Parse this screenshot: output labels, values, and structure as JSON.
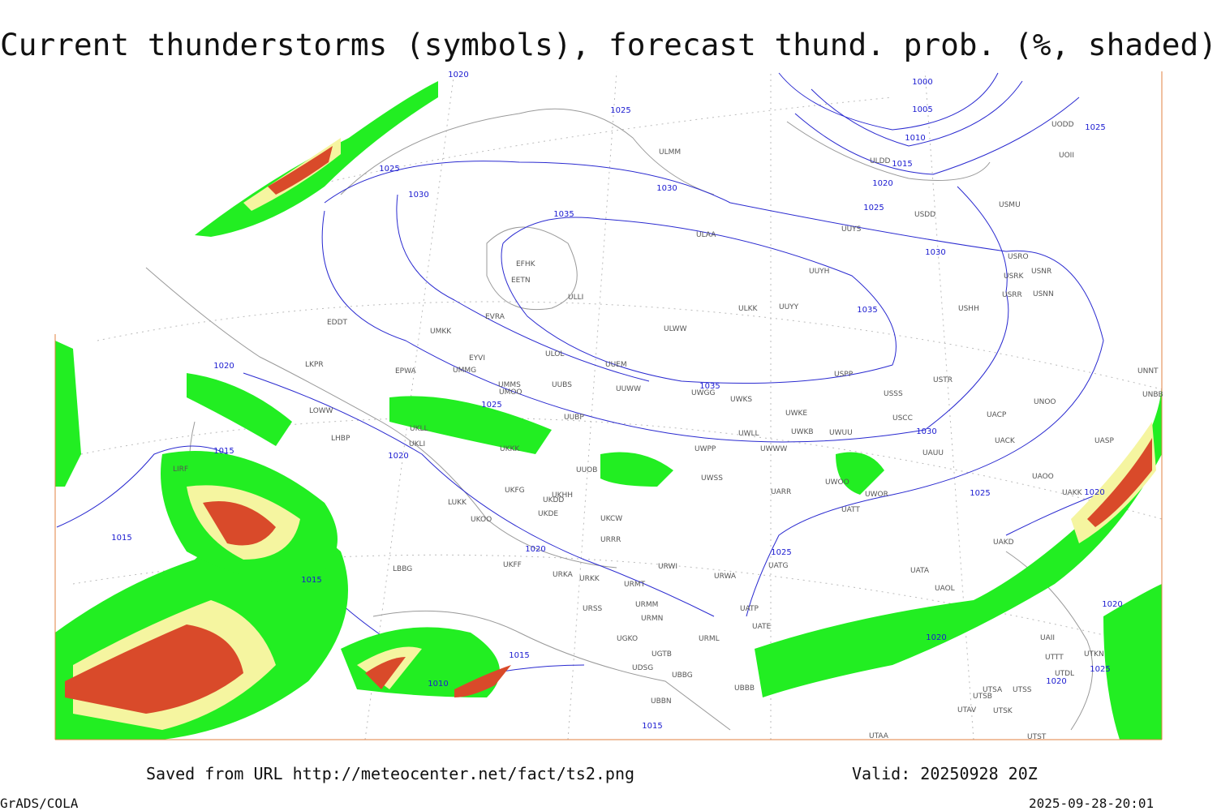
{
  "title": "Current thunderstorms (symbols), forecast thund. prob. (%, shaded)",
  "footer": {
    "source": "Saved from URL http://meteocenter.net/fact/ts2.png",
    "valid": "Valid: 20250928 20Z",
    "software": "GrADS/COLA",
    "timestamp": "2025-09-28-20:01"
  },
  "isobar_labels": [
    "1020",
    "1025",
    "1000",
    "1005",
    "1010",
    "1015",
    "1020",
    "1025",
    "1025",
    "1025",
    "1030",
    "1030",
    "1035",
    "1030",
    "1035",
    "1035",
    "1030",
    "1025",
    "1020",
    "1025",
    "1020",
    "1025",
    "1015",
    "1020",
    "1015",
    "1020",
    "1015",
    "1015",
    "1010",
    "1015",
    "1020",
    "1020",
    "1025",
    "1020"
  ],
  "stations": [
    "EFHK",
    "EETN",
    "EVRA",
    "ULLI",
    "ULOL",
    "UMKK",
    "EDDT",
    "EYVI",
    "EPWA",
    "UMMG",
    "LKPR",
    "UMMS",
    "UMOO",
    "UUBS",
    "UUEM",
    "ULWW",
    "ULKK",
    "UUYY",
    "UUYH",
    "ULAA",
    "ULMM",
    "UUYS",
    "USPP",
    "USSS",
    "USTR",
    "USCC",
    "UWKE",
    "UWKB",
    "UWUU",
    "UWLL",
    "UWWW",
    "UWPP",
    "UWSS",
    "UARR",
    "UWOO",
    "UWOR",
    "UATT",
    "UAUU",
    "UACK",
    "UACP",
    "UNOO",
    "UASP",
    "UAOO",
    "UAKK",
    "USRR",
    "USHH",
    "USNN",
    "USNR",
    "USRK",
    "USRO",
    "USMU",
    "USDD",
    "ULDD",
    "UODD",
    "UOII",
    "UNNT",
    "UNBB",
    "UWGG",
    "UWKS",
    "UUWW",
    "UUBP",
    "UKLL",
    "UKLI",
    "LOWW",
    "LHBP",
    "UKKK",
    "UUOB",
    "UKHH",
    "UKDD",
    "UKDE",
    "UKFG",
    "LUKK",
    "UKOO",
    "UKCW",
    "URRR",
    "LIRF",
    "LBBG",
    "UKFF",
    "URKA",
    "URKK",
    "URWI",
    "URMT",
    "URMM",
    "URMN",
    "URSS",
    "UGKO",
    "UGTB",
    "UDSG",
    "UBBG",
    "URML",
    "UATG",
    "URWA",
    "UATE",
    "UATP",
    "UATA",
    "UAOL",
    "UAKD",
    "UBBB",
    "UBBN",
    "UTAA",
    "UTSA",
    "UTSB",
    "UTSS",
    "UTAV",
    "UTSK",
    "UTST",
    "UTDL",
    "UTTT",
    "UTKN",
    "UAII"
  ]
}
